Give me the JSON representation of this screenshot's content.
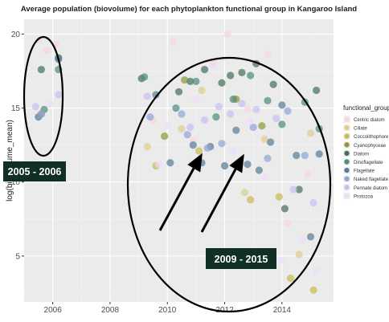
{
  "chart_data": {
    "type": "scatter",
    "title": "Average population (biovolume) for each phytoplankton functional group in Kangaroo Island",
    "xlabel": "",
    "ylabel": "log(bio_volume_mean)",
    "xlim": [
      2005.0,
      2015.8
    ],
    "ylim": [
      1.9,
      21.0
    ],
    "x_ticks": [
      2006,
      2008,
      2010,
      2012,
      2014
    ],
    "x_tick_labels": [
      "2006",
      "2008",
      "2010",
      "2012",
      "2014"
    ],
    "y_ticks": [
      5,
      10,
      15,
      20
    ],
    "y_tick_labels": [
      "5",
      "10",
      "15",
      "20"
    ],
    "grid": true,
    "legend": {
      "title": "functional_group",
      "position": "right",
      "entries": [
        {
          "name": "Centric diatom",
          "color": "#f6d5dc"
        },
        {
          "name": "Ciliate",
          "color": "#dccf92"
        },
        {
          "name": "Coccolithophore",
          "color": "#c8bb55"
        },
        {
          "name": "Cyanophyceae",
          "color": "#8f9a3a"
        },
        {
          "name": "Diatom",
          "color": "#46735a"
        },
        {
          "name": "Dinoflagellate",
          "color": "#4f8e7c"
        },
        {
          "name": "Flagellate",
          "color": "#5a7e99"
        },
        {
          "name": "Naked flagellate",
          "color": "#94a3d9"
        },
        {
          "name": "Pennate diatom",
          "color": "#c7bff2"
        },
        {
          "name": "Protozoa",
          "color": "#ebdcfb"
        }
      ]
    },
    "annotations": {
      "left_period": "2005 - 2006",
      "right_period": "2009 - 2015"
    },
    "series": [
      {
        "name": "Centric diatom",
        "x": [
          2005.5,
          2005.8,
          2006.1,
          2009.5,
          2010.2,
          2010.9,
          2011.6,
          2012.1,
          2012.8,
          2013.5,
          2014.2,
          2014.9
        ],
        "y": [
          19.6,
          18.9,
          19.3,
          14.2,
          19.5,
          12.8,
          18.1,
          20.0,
          14.9,
          18.6,
          7.2,
          10.5
        ]
      },
      {
        "name": "Ciliate",
        "x": [
          2009.3,
          2010.5,
          2011.2,
          2012.7,
          2013.4,
          2014.6,
          2015.0
        ],
        "y": [
          12.4,
          13.6,
          16.2,
          9.3,
          12.9,
          5.1,
          13.3
        ]
      },
      {
        "name": "Coccolithophore",
        "x": [
          2009.6,
          2011.1,
          2012.9,
          2013.9,
          2014.3,
          2015.1
        ],
        "y": [
          11.1,
          12.1,
          8.8,
          9.0,
          3.5,
          2.7
        ]
      },
      {
        "name": "Cyanophyceae",
        "x": [
          2005.6,
          2009.9,
          2010.6,
          2012.4,
          2013.3
        ],
        "y": [
          14.6,
          13.1,
          16.9,
          15.6,
          13.8
        ]
      },
      {
        "name": "Diatom",
        "x": [
          2005.6,
          2006.2,
          2009.1,
          2010.4,
          2010.8,
          2011.3,
          2011.9,
          2012.2,
          2012.6,
          2013.1,
          2013.7,
          2014.1,
          2014.6,
          2015.2
        ],
        "y": [
          17.6,
          18.4,
          17.0,
          16.1,
          16.8,
          17.6,
          16.7,
          17.2,
          17.4,
          18.0,
          16.6,
          8.2,
          9.5,
          16.2
        ]
      },
      {
        "name": "Dinoflagellate",
        "x": [
          2005.7,
          2006.2,
          2009.2,
          2010.3,
          2011.0,
          2011.7,
          2012.3,
          2012.9,
          2013.5,
          2014.0,
          2014.8,
          2015.3
        ],
        "y": [
          14.9,
          17.6,
          17.1,
          15.0,
          16.8,
          14.4,
          15.6,
          17.2,
          15.5,
          13.9,
          15.4,
          13.6
        ]
      },
      {
        "name": "Flagellate",
        "x": [
          2005.5,
          2006.2,
          2009.6,
          2010.1,
          2010.9,
          2011.2,
          2011.5,
          2012.0,
          2012.4,
          2012.8,
          2013.2,
          2013.6,
          2014.0,
          2014.5,
          2015.0,
          2015.3
        ],
        "y": [
          14.4,
          18.3,
          15.9,
          11.3,
          12.5,
          11.3,
          12.4,
          11.1,
          13.5,
          11.2,
          10.8,
          12.7,
          15.2,
          11.8,
          6.3,
          11.9
        ]
      },
      {
        "name": "Naked flagellate",
        "x": [
          2005.6,
          2009.4,
          2010.5,
          2010.7,
          2011.4,
          2011.9,
          2012.5,
          2013.0,
          2013.5,
          2014.2,
          2014.8
        ],
        "y": [
          14.6,
          14.4,
          14.6,
          13.2,
          12.3,
          12.6,
          11.2,
          13.7,
          11.6,
          14.8,
          11.8
        ]
      },
      {
        "name": "Pennate diatom",
        "x": [
          2005.4,
          2006.2,
          2009.3,
          2010.8,
          2011.3,
          2011.8,
          2012.2,
          2012.6,
          2013.1,
          2013.8,
          2014.4,
          2015.1
        ],
        "y": [
          15.1,
          15.9,
          15.8,
          13.7,
          14.2,
          15.1,
          14.6,
          15.3,
          14.9,
          14.3,
          9.5,
          8.6
        ]
      },
      {
        "name": "Protozoa",
        "x": [
          2005.9,
          2009.7,
          2010.0,
          2011.0,
          2011.6,
          2012.3,
          2012.9,
          2013.4,
          2014.0,
          2014.7,
          2015.2
        ],
        "y": [
          15.3,
          11.2,
          13.8,
          15.6,
          17.9,
          12.1,
          14.1,
          10.3,
          4.7,
          6.1,
          4.0
        ]
      }
    ]
  }
}
